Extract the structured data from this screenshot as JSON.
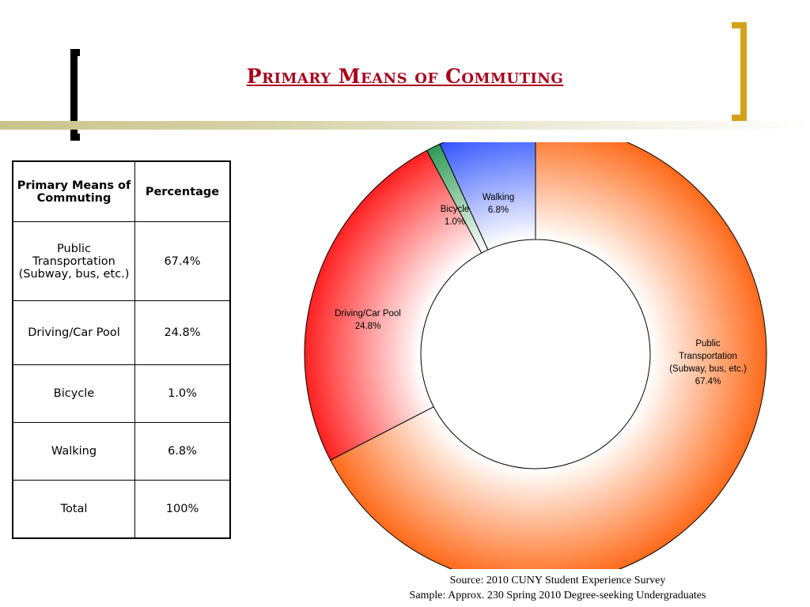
{
  "title": "Primary Means of Commuting",
  "table": {
    "headers": [
      "Primary Means of Commuting",
      "Percentage"
    ],
    "rows": [
      {
        "mode": "Public Transportation (Subway, bus, etc.)",
        "pct": "67.4%"
      },
      {
        "mode": "Driving/Car Pool",
        "pct": "24.8%"
      },
      {
        "mode": "Bicycle",
        "pct": "1.0%"
      },
      {
        "mode": "Walking",
        "pct": "6.8%"
      },
      {
        "mode": "Total",
        "pct": "100%"
      }
    ]
  },
  "chart_data": {
    "type": "pie",
    "donut": true,
    "categories": [
      "Public Transportation (Subway, bus, etc.)",
      "Driving/Car Pool",
      "Bicycle",
      "Walking"
    ],
    "values": [
      67.4,
      24.8,
      1.0,
      6.8
    ],
    "label_lines": [
      [
        "Public",
        "Transportation",
        "(Subway, bus, etc.)",
        "67.4%"
      ],
      [
        "Driving/Car Pool",
        "24.8%"
      ],
      [
        "Bicycle",
        "1.0%"
      ],
      [
        "Walking",
        "6.8%"
      ]
    ],
    "colors": [
      "#ff6a1a",
      "#ff2020",
      "#2e9a55",
      "#3355ff"
    ]
  },
  "source": {
    "line1": "Source: 2010 CUNY Student Experience Survey",
    "line2": "Sample: Approx. 230 Spring 2010 Degree-seeking Undergraduates"
  }
}
